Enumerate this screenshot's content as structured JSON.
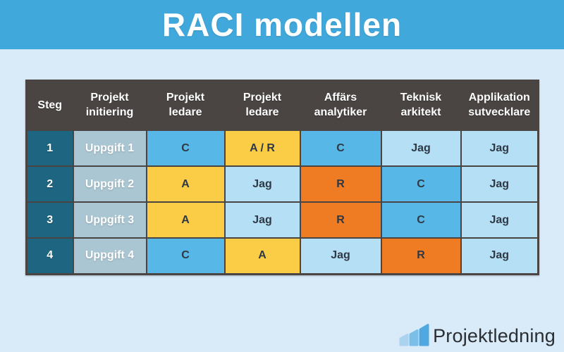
{
  "title": "RACI modellen",
  "colors": {
    "banner": "#41A8DC",
    "background": "#D9EAF8",
    "header_bg": "#4A4543",
    "border": "#4A4543",
    "step_bg": "#1E6581",
    "task_bg": "#ABC6D3",
    "blue": "#57B8E8",
    "light_blue": "#B4DFF5",
    "yellow": "#FBCD47",
    "orange": "#EF7B22",
    "cell_text": "#2E3945",
    "brand_text": "#2A2E33"
  },
  "table": {
    "columns": [
      "Steg",
      "Projekt\ninitiering",
      "Projekt\nledare",
      "Projekt\nledare",
      "Affärs\nanalytiker",
      "Teknisk\narkitekt",
      "Applikation\nsutvecklare"
    ],
    "rows": [
      {
        "step": "1",
        "task": "Uppgift 1",
        "cells": [
          {
            "label": "C",
            "type": "blue"
          },
          {
            "label": "A / R",
            "type": "yellow"
          },
          {
            "label": "C",
            "type": "blue"
          },
          {
            "label": "Jag",
            "type": "light_blue"
          },
          {
            "label": "Jag",
            "type": "light_blue"
          }
        ]
      },
      {
        "step": "2",
        "task": "Uppgift 2",
        "cells": [
          {
            "label": "A",
            "type": "yellow"
          },
          {
            "label": "Jag",
            "type": "light_blue"
          },
          {
            "label": "R",
            "type": "orange"
          },
          {
            "label": "C",
            "type": "blue"
          },
          {
            "label": "Jag",
            "type": "light_blue"
          }
        ]
      },
      {
        "step": "3",
        "task": "Uppgift 3",
        "cells": [
          {
            "label": "A",
            "type": "yellow"
          },
          {
            "label": "Jag",
            "type": "light_blue"
          },
          {
            "label": "R",
            "type": "orange"
          },
          {
            "label": "C",
            "type": "blue"
          },
          {
            "label": "Jag",
            "type": "light_blue"
          }
        ]
      },
      {
        "step": "4",
        "task": "Uppgift 4",
        "cells": [
          {
            "label": "C",
            "type": "blue"
          },
          {
            "label": "A",
            "type": "yellow"
          },
          {
            "label": "Jag",
            "type": "light_blue"
          },
          {
            "label": "R",
            "type": "orange"
          },
          {
            "label": "Jag",
            "type": "light_blue"
          }
        ]
      }
    ]
  },
  "footer": {
    "brand": "Projektledning",
    "logo_bars": [
      "#A9D3EE",
      "#7BBEE8",
      "#4FA8E0"
    ]
  }
}
